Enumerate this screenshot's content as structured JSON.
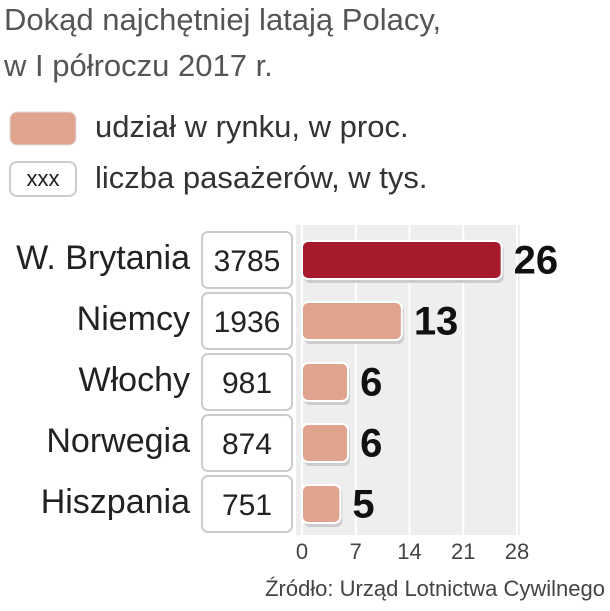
{
  "chart_data": {
    "type": "bar",
    "title": [
      "Dokąd najchętniej latają Polacy,",
      "w I półroczu 2017 r."
    ],
    "categories": [
      "W. Brytania",
      "Niemcy",
      "Włochy",
      "Norwegia",
      "Hiszpania"
    ],
    "series": [
      {
        "name": "udział w rynku, w proc.",
        "color": "#e0a48e",
        "highlight_color": "#a51b2b",
        "values": [
          26,
          13,
          6,
          6,
          5
        ]
      },
      {
        "name": "liczba pasażerów, w tys.",
        "legend_sample": "xxx",
        "values": [
          3785,
          1936,
          981,
          874,
          751
        ]
      }
    ],
    "xlim": [
      0,
      28
    ],
    "xticks": [
      0,
      7,
      14,
      21,
      28
    ],
    "grid": true,
    "source": "Źródło: Urząd Lotnictwa Cywilnego"
  }
}
